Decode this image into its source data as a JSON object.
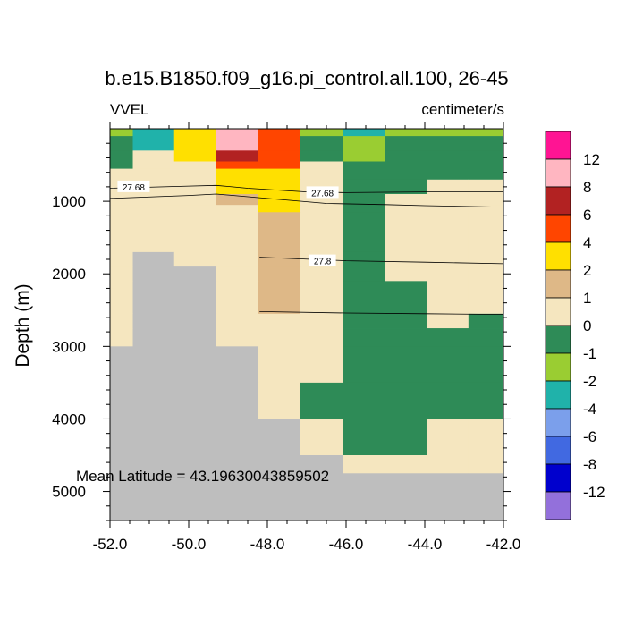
{
  "chart_data": {
    "type": "heatmap",
    "title": "b.e15.B1850.f09_g16.pi_control.all.100, 26-45",
    "left_label": "VVEL",
    "right_label": "centimeter/s",
    "ylabel": "Depth (m)",
    "xlim": [
      -52,
      -42
    ],
    "ylim": [
      5400,
      0
    ],
    "x_ticks": [
      -52,
      -50,
      -48,
      -46,
      -44,
      -42
    ],
    "x_tick_labels": [
      "-52.0",
      "-50.0",
      "-48.0",
      "-46.0",
      "-44.0",
      "-42.0"
    ],
    "y_ticks": [
      1000,
      2000,
      3000,
      4000,
      5000
    ],
    "y_tick_labels": [
      "1000",
      "2000",
      "3000",
      "4000",
      "5000"
    ],
    "annotation": "Mean Latitude = 43.19630043859502",
    "x_edges": [
      -52.0,
      -51.42,
      -50.37,
      -49.3,
      -48.23,
      -47.16,
      -46.09,
      -45.02,
      -43.95,
      -42.89,
      -42.0
    ],
    "depth_edges": [
      0,
      100,
      300,
      450,
      550,
      700,
      900,
      1050,
      1150,
      1700,
      1900,
      2100,
      2550,
      2750,
      3000,
      3500,
      4000,
      4500,
      4750,
      5400
    ],
    "category_colors": {
      "L": "#BEBEBE",
      "M12": "#9370DB",
      "M8": "#0000CD",
      "M6": "#4169E1",
      "M4": "#7B9FEB",
      "M2": "#20B2AA",
      "M1": "#9ACD32",
      "N": "#2E8B57",
      "Z": "#F5E6BF",
      "P1": "#DEB887",
      "P2": "#FFE000",
      "P4": "#FF4500",
      "P6": "#B22222",
      "P8": "#FFB6C1",
      "P12": "#FF1493"
    },
    "grid_rows": [
      [
        "M1",
        "M2",
        "P2",
        "P8",
        "P4",
        "M1",
        "M2",
        "M1",
        "M1",
        "M1"
      ],
      [
        "N",
        "M2",
        "P2",
        "P8",
        "P4",
        "N",
        "M1",
        "N",
        "N",
        "N"
      ],
      [
        "N",
        "Z",
        "P2",
        "P6",
        "P4",
        "N",
        "M1",
        "N",
        "N",
        "N"
      ],
      [
        "N",
        "Z",
        "Z",
        "P4",
        "P4",
        "Z",
        "N",
        "N",
        "N",
        "N"
      ],
      [
        "Z",
        "Z",
        "Z",
        "P2",
        "P2",
        "Z",
        "N",
        "N",
        "N",
        "N"
      ],
      [
        "Z",
        "Z",
        "Z",
        "P2",
        "P2",
        "Z",
        "N",
        "N",
        "Z",
        "Z"
      ],
      [
        "Z",
        "Z",
        "Z",
        "P1",
        "P2",
        "Z",
        "N",
        "Z",
        "Z",
        "Z"
      ],
      [
        "Z",
        "Z",
        "Z",
        "Z",
        "P2",
        "Z",
        "N",
        "Z",
        "Z",
        "Z"
      ],
      [
        "Z",
        "Z",
        "Z",
        "Z",
        "P1",
        "Z",
        "N",
        "Z",
        "Z",
        "Z"
      ],
      [
        "Z",
        "L",
        "Z",
        "Z",
        "P1",
        "Z",
        "N",
        "Z",
        "Z",
        "Z"
      ],
      [
        "Z",
        "L",
        "L",
        "Z",
        "P1",
        "Z",
        "N",
        "Z",
        "Z",
        "Z"
      ],
      [
        "Z",
        "L",
        "L",
        "Z",
        "P1",
        "Z",
        "N",
        "N",
        "Z",
        "Z"
      ],
      [
        "Z",
        "L",
        "L",
        "Z",
        "Z",
        "Z",
        "N",
        "N",
        "Z",
        "N"
      ],
      [
        "Z",
        "L",
        "L",
        "Z",
        "Z",
        "Z",
        "N",
        "N",
        "N",
        "N"
      ],
      [
        "L",
        "L",
        "L",
        "L",
        "Z",
        "Z",
        "N",
        "N",
        "N",
        "N"
      ],
      [
        "L",
        "L",
        "L",
        "L",
        "Z",
        "N",
        "N",
        "N",
        "N",
        "N"
      ],
      [
        "L",
        "L",
        "L",
        "L",
        "L",
        "Z",
        "N",
        "N",
        "Z",
        "Z"
      ],
      [
        "L",
        "L",
        "L",
        "L",
        "L",
        "L",
        "Z",
        "Z",
        "Z",
        "Z"
      ],
      [
        "L",
        "L",
        "L",
        "L",
        "L",
        "L",
        "L",
        "L",
        "L",
        "L"
      ]
    ],
    "legend": {
      "boxes": [
        "#FF1493",
        "#FFB6C1",
        "#B22222",
        "#FF4500",
        "#FFE000",
        "#DEB887",
        "#F5E6BF",
        "#2E8B57",
        "#9ACD32",
        "#20B2AA",
        "#7B9FEB",
        "#4169E1",
        "#0000CD",
        "#9370DB"
      ],
      "labels": [
        "12",
        "8",
        "6",
        "4",
        "2",
        "1",
        "0",
        "-1",
        "-2",
        "-4",
        "-6",
        "-8",
        "-12"
      ]
    },
    "contours": [
      {
        "label": "27.68",
        "points": [
          [
            -52,
            960
          ],
          [
            -50,
            920
          ],
          [
            -49.3,
            900
          ],
          [
            -48.2,
            950
          ],
          [
            -46.5,
            1030
          ],
          [
            -45,
            1045
          ],
          [
            -44,
            1060
          ],
          [
            -42,
            1080
          ]
        ]
      },
      {
        "label": "27.68",
        "points": [
          [
            -52,
            820
          ],
          [
            -50,
            790
          ],
          [
            -49.3,
            780
          ],
          [
            -48.5,
            820
          ],
          [
            -47,
            870
          ],
          [
            -46,
            880
          ],
          [
            -44,
            870
          ],
          [
            -42,
            870
          ]
        ]
      },
      {
        "label": "27.8",
        "points": [
          [
            -48.2,
            1770
          ],
          [
            -46,
            1820
          ],
          [
            -44,
            1840
          ],
          [
            -42,
            1860
          ]
        ]
      },
      {
        "label": "",
        "points": [
          [
            -48.2,
            2520
          ],
          [
            -46,
            2540
          ],
          [
            -44,
            2550
          ],
          [
            -42,
            2560
          ]
        ]
      }
    ],
    "contour_labels": [
      {
        "text": "27.68",
        "x": -51.4,
        "depth": 800
      },
      {
        "text": "27.68",
        "x": -46.6,
        "depth": 880
      },
      {
        "text": "27.8",
        "x": -46.6,
        "depth": 1820
      }
    ]
  }
}
